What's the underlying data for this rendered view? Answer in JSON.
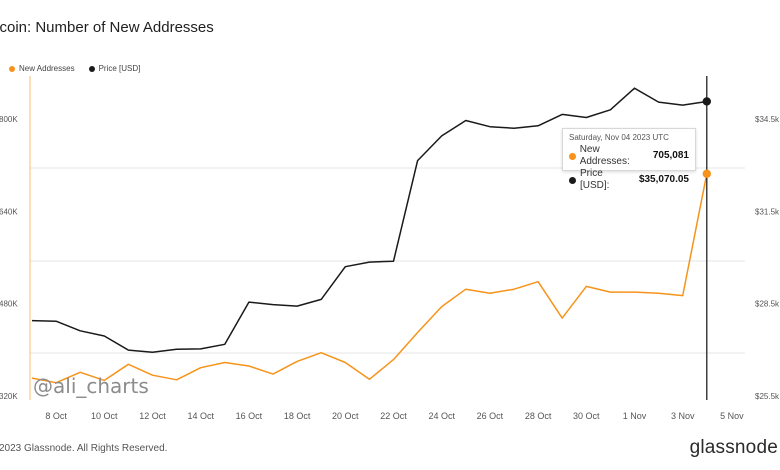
{
  "chart_data": {
    "type": "line",
    "title": "itcoin: Number of New Addresses",
    "legend_position": "top-left",
    "x": [
      "7 Oct",
      "8 Oct",
      "9 Oct",
      "10 Oct",
      "11 Oct",
      "12 Oct",
      "13 Oct",
      "14 Oct",
      "15 Oct",
      "16 Oct",
      "17 Oct",
      "18 Oct",
      "19 Oct",
      "20 Oct",
      "21 Oct",
      "22 Oct",
      "23 Oct",
      "24 Oct",
      "25 Oct",
      "26 Oct",
      "27 Oct",
      "28 Oct",
      "29 Oct",
      "30 Oct",
      "31 Oct",
      "1 Nov",
      "2 Nov",
      "3 Nov",
      "4 Nov"
    ],
    "x_tick_labels": [
      "8 Oct",
      "10 Oct",
      "12 Oct",
      "14 Oct",
      "16 Oct",
      "18 Oct",
      "20 Oct",
      "22 Oct",
      "24 Oct",
      "26 Oct",
      "28 Oct",
      "30 Oct",
      "1 Nov",
      "3 Nov",
      "5 Nov"
    ],
    "left_axis": {
      "ticks": [
        "320K",
        "480K",
        "640K",
        "800K"
      ],
      "ylim": [
        320000,
        880000
      ]
    },
    "right_axis": {
      "ticks": [
        "$25.5k",
        "$28.5k",
        "$31.5k",
        "$34.5k"
      ],
      "ylim": [
        25500,
        36100
      ]
    },
    "series": [
      {
        "name": "New Addresses",
        "axis": "left",
        "color": "#f7931a",
        "values": [
          351000,
          343000,
          361000,
          347000,
          375000,
          356000,
          348000,
          369000,
          378000,
          372000,
          358000,
          380000,
          395000,
          378000,
          349000,
          383000,
          430000,
          475000,
          505000,
          498000,
          505000,
          518000,
          455000,
          510000,
          500000,
          500000,
          498000,
          494000,
          705081
        ]
      },
      {
        "name": "Price [USD]",
        "axis": "right",
        "color": "#1a1a1a",
        "values": [
          27950,
          27930,
          27620,
          27450,
          26990,
          26920,
          27020,
          27030,
          27180,
          28550,
          28470,
          28420,
          28640,
          29700,
          29850,
          29880,
          33150,
          33950,
          34450,
          34250,
          34200,
          34280,
          34650,
          34550,
          34800,
          35500,
          35050,
          34950,
          35070.05
        ]
      }
    ],
    "watermark": "@ali_charts",
    "tooltip": {
      "date": "Saturday, Nov 04 2023 UTC",
      "addresses_label": "New Addresses:",
      "addresses_value": "705,081",
      "price_label": "Price [USD]:",
      "price_value": "$35,070.05"
    },
    "footer": "2023 Glassnode. All Rights Reserved.",
    "brand": "glassnode"
  }
}
